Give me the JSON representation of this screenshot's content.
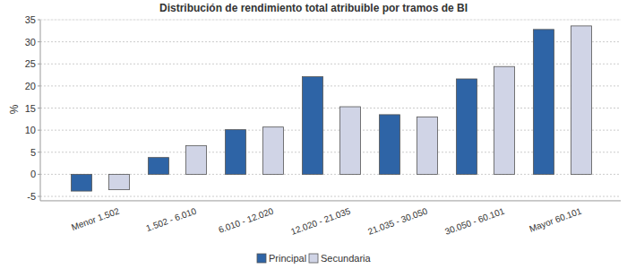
{
  "chart_data": {
    "type": "bar",
    "title": "Distribución de rendimiento total atribuible por tramos de BI",
    "y_label": "%",
    "categories": [
      "Menor 1.502",
      "1.502 - 6.010",
      "6.010 - 12.020",
      "12.020 - 21.035",
      "21.035 - 30.050",
      "30.050 - 60.101",
      "Mayor 60.101"
    ],
    "series": [
      {
        "name": "Principal",
        "color": "#2e64a6",
        "values": [
          -3.8,
          3.8,
          10.1,
          22.1,
          13.5,
          21.6,
          32.8
        ]
      },
      {
        "name": "Secundaria",
        "color": "#d0d4e6",
        "values": [
          -3.5,
          6.5,
          10.7,
          15.3,
          13.0,
          24.4,
          33.6
        ]
      }
    ],
    "ylim": [
      -6,
      35
    ],
    "yticks": [
      -5,
      0,
      5,
      10,
      15,
      20,
      25,
      30,
      35
    ],
    "grid": true,
    "legend": "bottom"
  }
}
